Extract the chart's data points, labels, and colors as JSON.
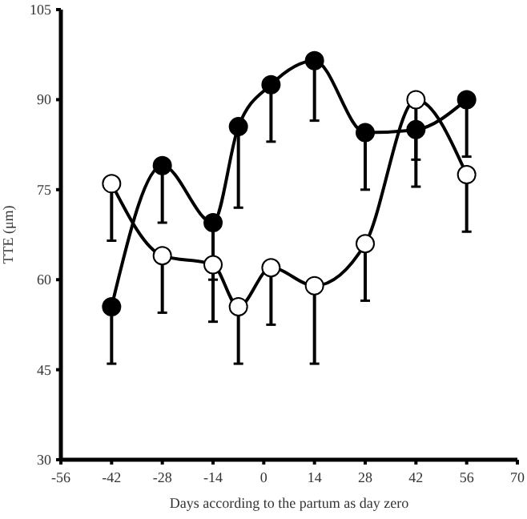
{
  "chart_data": {
    "type": "line",
    "xlabel": "Days according to the partum as day zero",
    "ylabel": "TTE (μm)",
    "xlim": [
      -56,
      70
    ],
    "xticks": [
      -56,
      -42,
      -28,
      -14,
      0,
      14,
      28,
      42,
      56,
      70
    ],
    "ylim": [
      30,
      105
    ],
    "yticks": [
      30,
      45,
      60,
      75,
      90,
      105
    ],
    "grid": false,
    "marker": "circle",
    "line_style": "solid",
    "series": [
      {
        "color": "#000000",
        "x": [
          -42,
          -28,
          -14,
          -7,
          2,
          14,
          28,
          42,
          56
        ],
        "values": [
          55.5,
          79,
          69.5,
          85.5,
          92.5,
          96.5,
          84.5,
          85,
          90
        ],
        "errors": [
          [
            46,
            55.5
          ],
          [
            69.5,
            79
          ],
          [
            60,
            69.5
          ],
          [
            72,
            85.5
          ],
          [
            83,
            92.5
          ],
          [
            86.5,
            96.5
          ],
          [
            75,
            84.5
          ],
          [
            75.5,
            85
          ],
          [
            80.5,
            90
          ]
        ]
      },
      {
        "color": "#ffffff",
        "x": [
          -42,
          -28,
          -14,
          -7,
          2,
          14,
          28,
          42,
          56
        ],
        "values": [
          76,
          64,
          62.5,
          55.5,
          62,
          59,
          66,
          90,
          77.5
        ],
        "errors": [
          [
            66.5,
            76
          ],
          [
            54.5,
            64
          ],
          [
            53,
            62.5
          ],
          [
            46,
            55.5
          ],
          [
            52.5,
            62
          ],
          [
            46,
            59
          ],
          [
            56.5,
            66
          ],
          [
            80,
            90
          ],
          [
            68,
            77.5
          ]
        ]
      }
    ]
  }
}
